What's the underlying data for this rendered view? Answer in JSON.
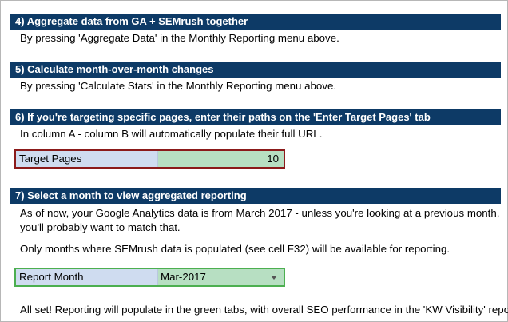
{
  "steps": [
    {
      "header": "4) Aggregate data from GA + SEMrush together",
      "line": "By pressing 'Aggregate Data' in the Monthly Reporting menu above."
    },
    {
      "header": "5) Calculate month-over-month changes",
      "line": "By pressing 'Calculate Stats' in the Monthly Reporting menu above."
    },
    {
      "header": "6) If you're targeting specific pages, enter their paths on the 'Enter Target Pages' tab",
      "line": "In column A - column B will automatically populate their full URL."
    },
    {
      "header": "7) Select a month to view aggregated reporting",
      "line1": "As of now, your Google Analytics data is from March 2017 - unless you're looking at a previous month,",
      "line2": "you'll probably want to match that.",
      "line3": "Only months where SEMrush data is populated (see cell F32) will be available for reporting."
    }
  ],
  "target_pages": {
    "label": "Target Pages",
    "value": "10"
  },
  "report_month": {
    "label": "Report Month",
    "value": "Mar-2017"
  },
  "footer": "All set!  Reporting will populate in the green tabs, with overall SEO performance in the 'KW Visibility' report.",
  "colors": {
    "header_bg": "#0d3a66",
    "label_bg": "#cfdcf0",
    "value_bg": "#b7dfc2",
    "red_border": "#8b1a1a",
    "green_border": "#4caf50"
  }
}
